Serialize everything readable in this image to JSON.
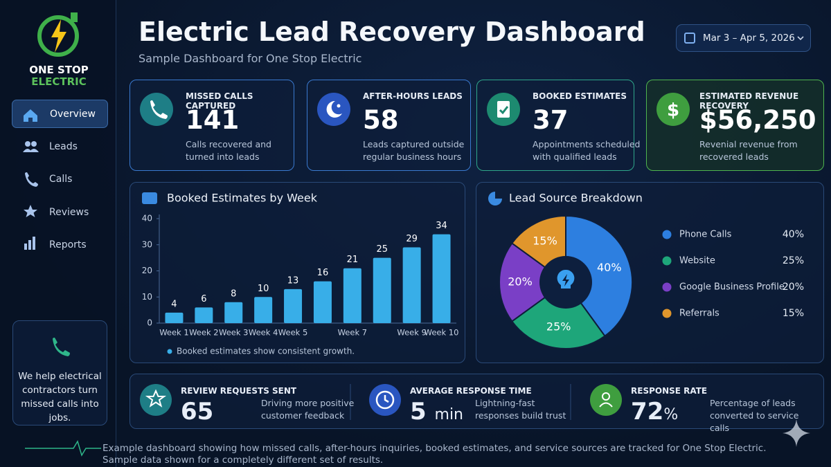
{
  "logo": {
    "line1": "ONE STOP",
    "line2": "ELECTRIC"
  },
  "nav": [
    "Overview",
    "Leads",
    "Calls",
    "Reviews",
    "Reports"
  ],
  "sidebar_note": "We help electrical contractors turn missed calls into jobs.",
  "header": {
    "title": "Electric Lead Recovery Dashboard",
    "subtitle": "Sample Dashboard for One Stop Electric",
    "date_range": "Mar 3 – Apr 5, 2026"
  },
  "kpis": [
    {
      "label": "MISSED CALLS CAPTURED",
      "value": "141",
      "description": "Calls recovered and turned into leads"
    },
    {
      "label": "AFTER-HOURS LEADS",
      "value": "58",
      "description": "Leads captured outside regular business hours"
    },
    {
      "label": "BOOKED ESTIMATES",
      "value": "37",
      "description": "Appointments scheduled with qualified leads"
    },
    {
      "label": "ESTIMATED REVENUE RECOVERY",
      "value": "$56,250",
      "description": "Revenial revenue from recovered leads"
    }
  ],
  "chart_data": [
    {
      "type": "bar",
      "title": "Booked Estimates by Week",
      "categories": [
        "Week 1",
        "Week 2",
        "Week 3",
        "Week 4",
        "Week 5",
        null,
        "Week 7",
        null,
        "Week 9",
        "Week 10"
      ],
      "values": [
        4,
        6,
        8,
        10,
        13,
        16,
        21,
        25,
        29,
        34
      ],
      "color": "#38aee8",
      "ylim": [
        0,
        40
      ],
      "yticks": [
        0,
        10,
        20,
        30,
        40
      ],
      "note": "Booked estimates show consistent growth."
    },
    {
      "type": "pie",
      "title": "Lead Source Breakdown",
      "categories": [
        "Phone Calls",
        "Website",
        "Google Business Profile",
        "Referrals"
      ],
      "values": [
        40,
        25,
        20,
        15
      ],
      "value_labels": [
        "40%",
        "25%",
        "20%",
        "15%"
      ],
      "colors": [
        "#2d7fe0",
        "#1ea67a",
        "#7a3fc6",
        "#e0962c"
      ]
    }
  ],
  "stats": [
    {
      "label": "REVIEW REQUESTS SENT",
      "value": "65",
      "description": "Driving more positive customer feedback"
    },
    {
      "label": "AVERAGE RESPONSE TIME",
      "value": "5",
      "unit": "min",
      "description": "Lightning-fast responses build trust"
    },
    {
      "label": "RESPONSE RATE",
      "value": "72",
      "unit": "%",
      "description": "Percentage of leads converted to service calls"
    }
  ],
  "footer": "Example dashboard showing how missed calls, after-hours inquiries, booked estimates, and service sources are tracked for One Stop Electric. Sample data shown for a completely different set of results."
}
